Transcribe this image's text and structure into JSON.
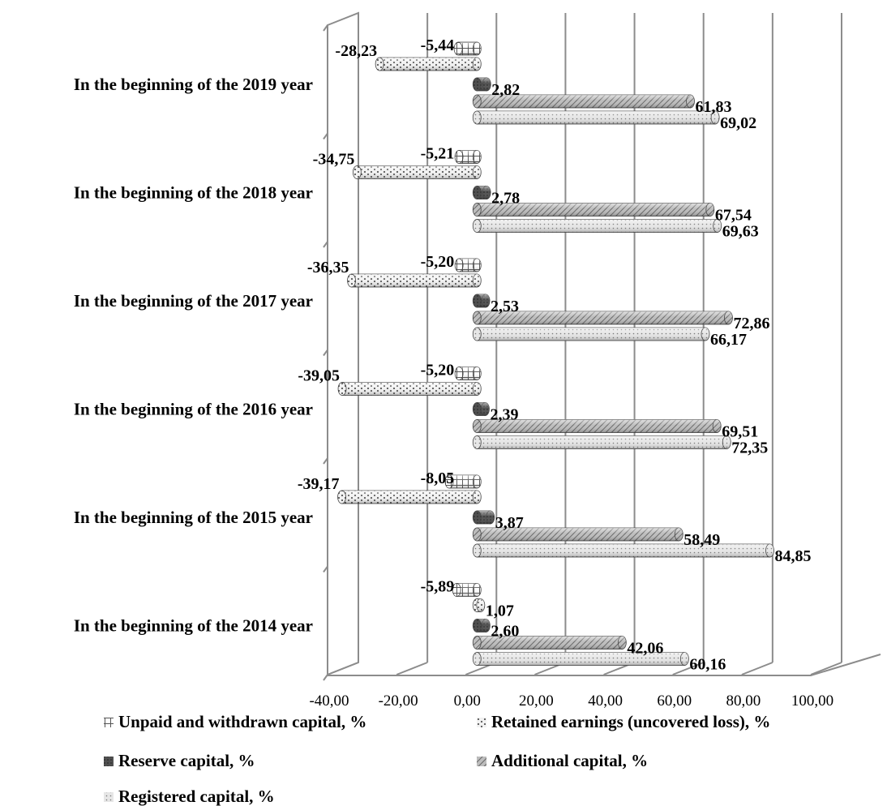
{
  "chart_data": {
    "type": "bar",
    "orientation": "horizontal",
    "style": "3d-cylinder",
    "categories": [
      "In the beginning of the 2014 year",
      "In the beginning of the 2015 year",
      "In the beginning of the 2016 year",
      "In the beginning of the 2017 year",
      "In the beginning of the 2018 year",
      "In the beginning of the 2019 year"
    ],
    "series": [
      {
        "name": "Unpaid and withdrawn capital, %",
        "pattern": "cross",
        "values": [
          -5.89,
          -8.05,
          -5.2,
          -5.2,
          -5.21,
          -5.44
        ],
        "labels": [
          "-5,89",
          "-8,05",
          "-5,20",
          "-5,20",
          "-5,21",
          "-5,44"
        ]
      },
      {
        "name": "Retained earnings (uncovered loss), %",
        "pattern": "dots",
        "values": [
          1.07,
          -39.17,
          -39.05,
          -36.35,
          -34.75,
          -28.23
        ],
        "labels": [
          "1,07",
          "-39,17",
          "-39,05",
          "-36,35",
          "-34,75",
          "-28,23"
        ]
      },
      {
        "name": "Reserve capital, %",
        "pattern": "dark",
        "values": [
          2.6,
          3.87,
          2.39,
          2.53,
          2.78,
          2.82
        ],
        "labels": [
          "2,60",
          "3,87",
          "2,39",
          "2,53",
          "2,78",
          "2,82"
        ]
      },
      {
        "name": "Additional capital, %",
        "pattern": "diagonal",
        "values": [
          42.06,
          58.49,
          69.51,
          72.86,
          67.54,
          61.83
        ],
        "labels": [
          "42,06",
          "58,49",
          "69,51",
          "72,86",
          "67,54",
          "61,83"
        ]
      },
      {
        "name": "Registered capital, %",
        "pattern": "fine-dots",
        "values": [
          60.16,
          84.85,
          72.35,
          66.17,
          69.63,
          69.02
        ],
        "labels": [
          "60,16",
          "84,85",
          "72,35",
          "66,17",
          "69,63",
          "69,02"
        ]
      }
    ],
    "x_ticks": [
      "-40,00",
      "-20,00",
      "0,00",
      "20,00",
      "40,00",
      "60,00",
      "80,00",
      "100,00"
    ],
    "xlim": [
      -40,
      100
    ],
    "grid": true,
    "legend_position": "bottom"
  }
}
